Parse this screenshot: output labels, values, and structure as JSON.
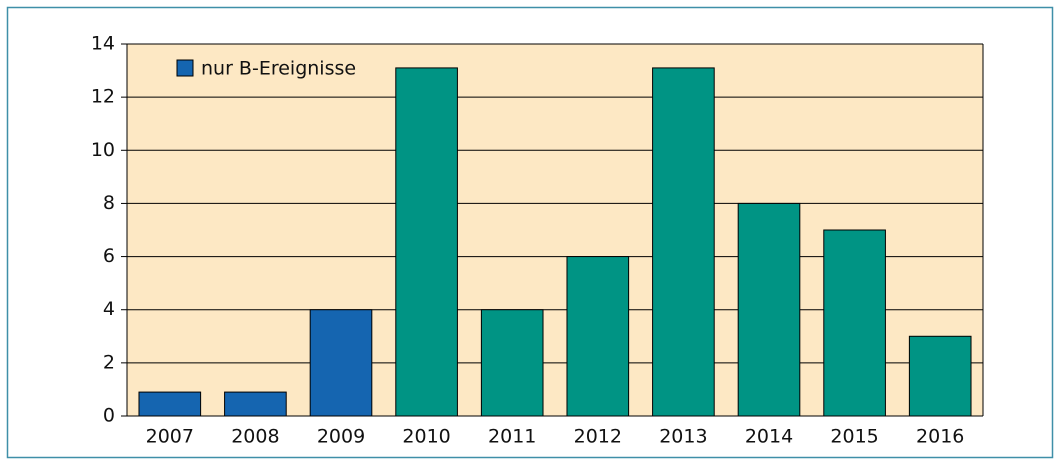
{
  "chart_data": {
    "type": "bar",
    "categories": [
      "2007",
      "2008",
      "2009",
      "2010",
      "2011",
      "2012",
      "2013",
      "2014",
      "2015",
      "2016"
    ],
    "values": [
      0.9,
      0.9,
      4,
      13.1,
      4,
      6,
      13.1,
      8,
      7,
      3
    ],
    "colors": [
      "#1565b0",
      "#1565b0",
      "#1565b0",
      "#009484",
      "#009484",
      "#009484",
      "#009484",
      "#009484",
      "#009484",
      "#009484"
    ],
    "legend": {
      "label": "nur B-Ereignisse",
      "color": "#1565b0",
      "position": "upper left"
    },
    "ylim": [
      0,
      14
    ],
    "yticks": [
      0,
      2,
      4,
      6,
      8,
      10,
      12,
      14
    ],
    "grid": true
  }
}
